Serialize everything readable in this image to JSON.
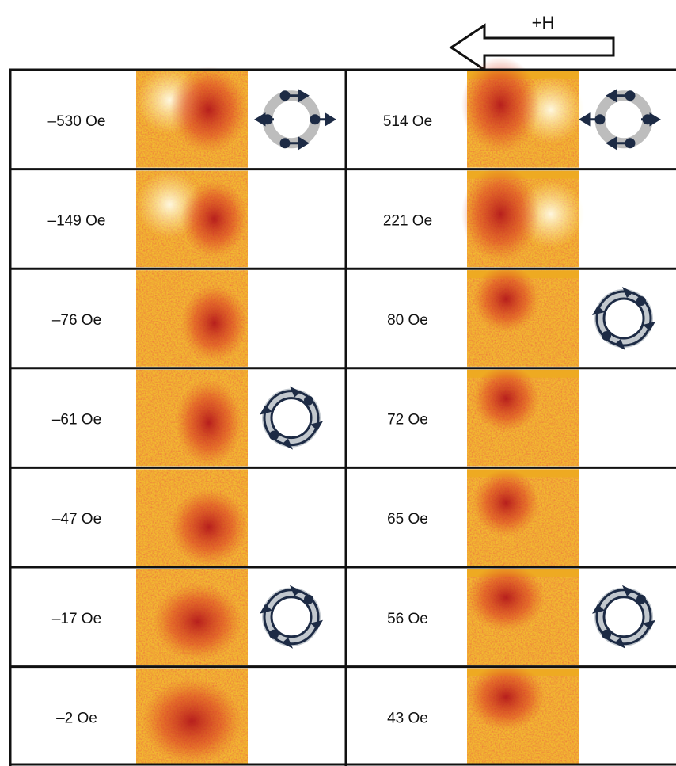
{
  "field_arrow_label": "+H",
  "rows": [
    {
      "left": "–530 Oe",
      "right": "514 Oe"
    },
    {
      "left": "–149 Oe",
      "right": "221 Oe"
    },
    {
      "left": "–76 Oe",
      "right": "80 Oe"
    },
    {
      "left": "–61 Oe",
      "right": "72 Oe"
    },
    {
      "left": "–47 Oe",
      "right": "65 Oe"
    },
    {
      "left": "–17 Oe",
      "right": "56 Oe"
    },
    {
      "left": "–2 Oe",
      "right": "43 Oe"
    }
  ]
}
